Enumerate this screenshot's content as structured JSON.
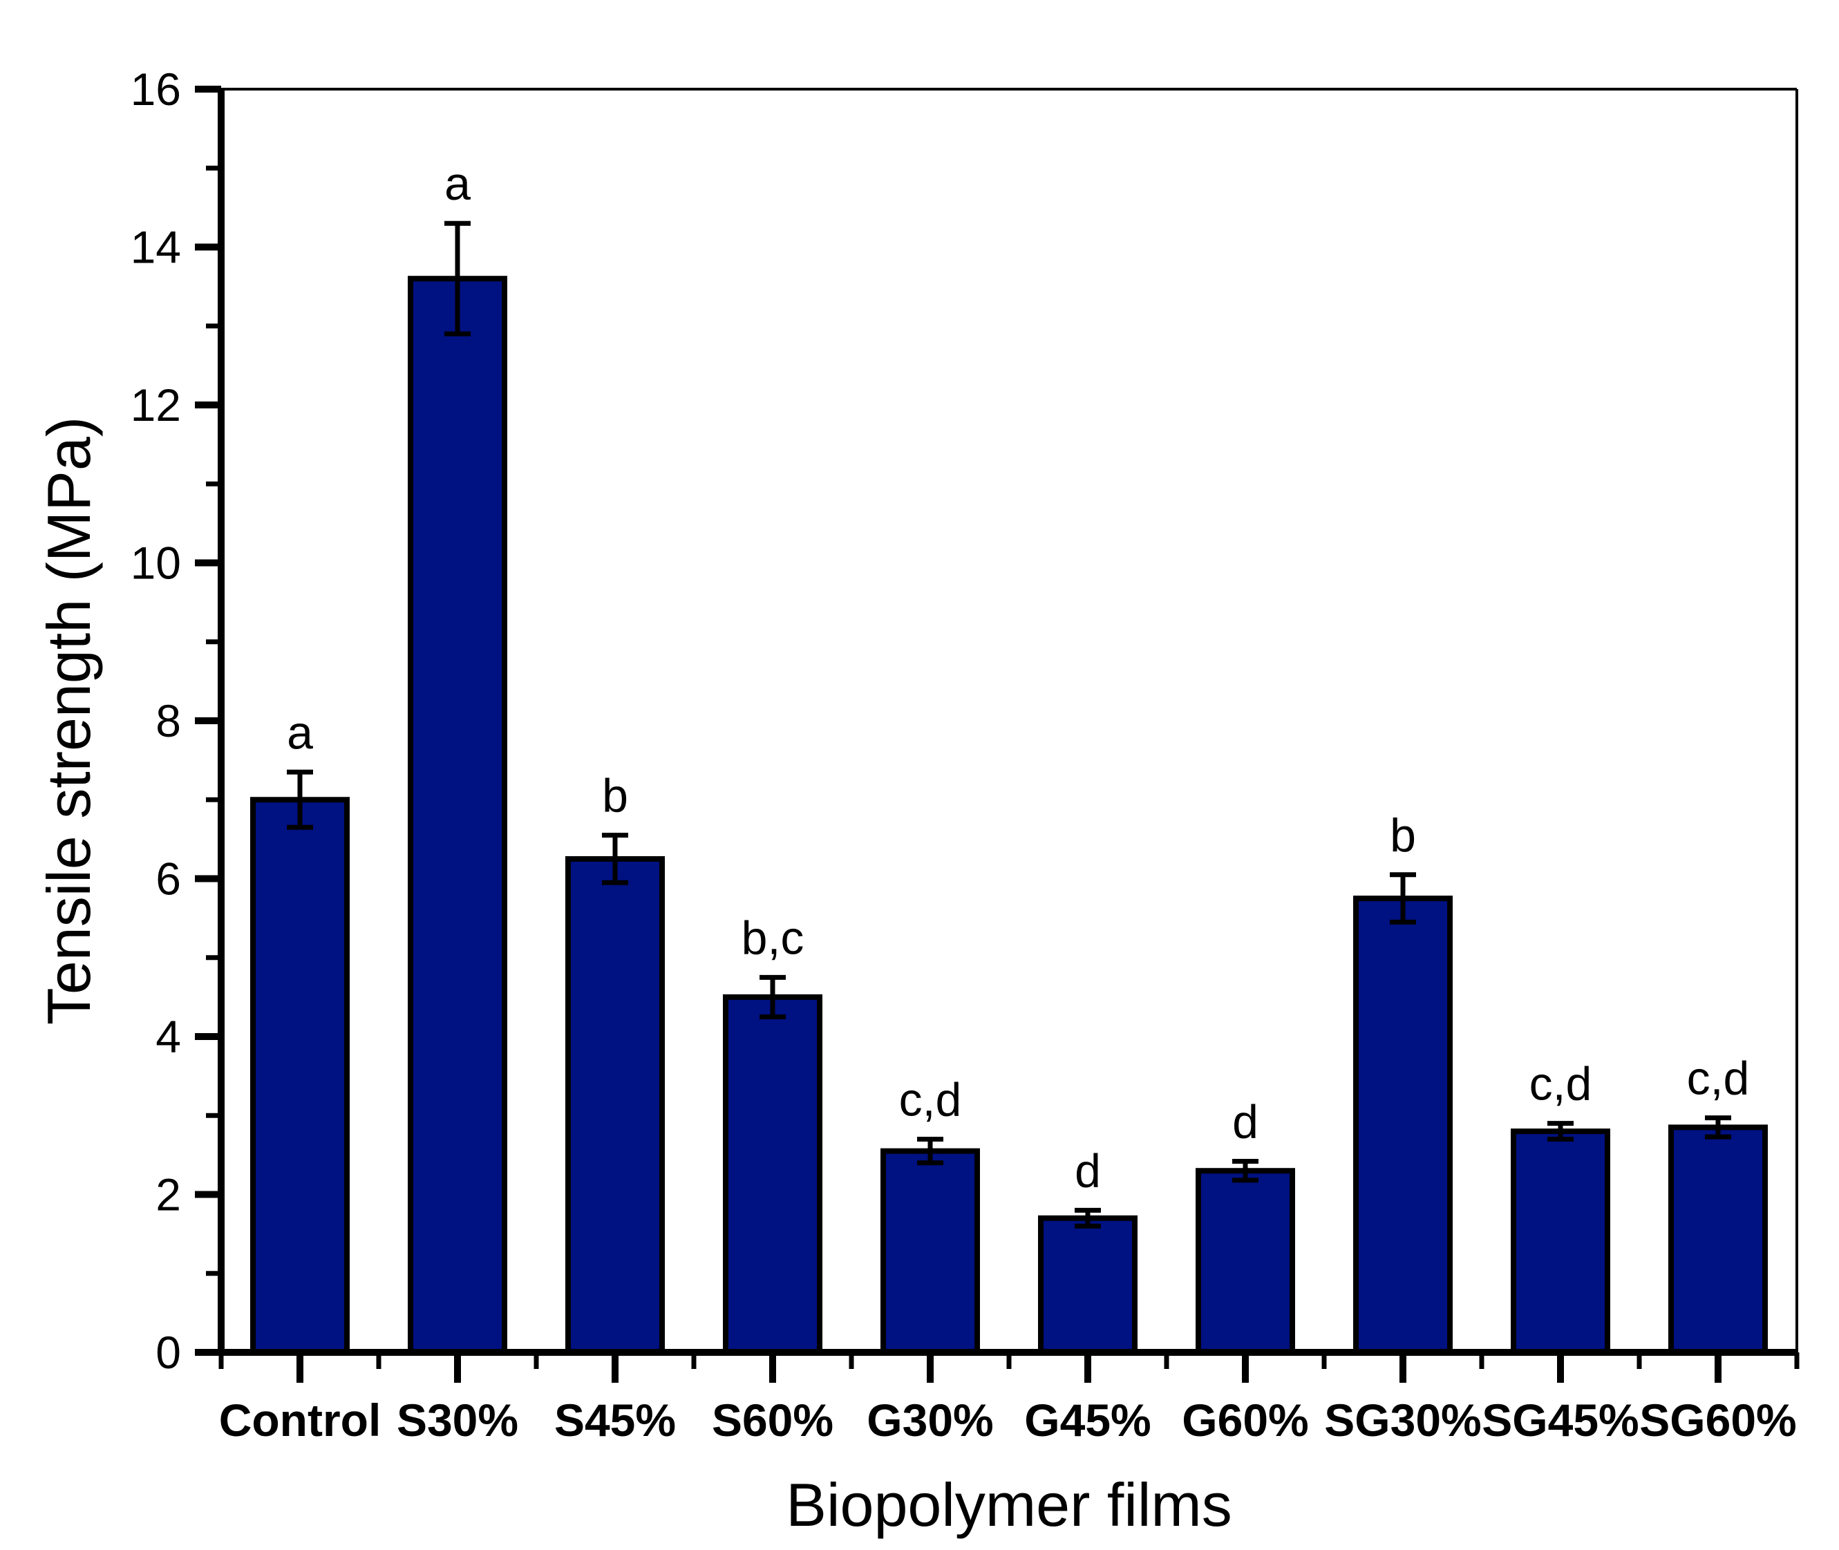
{
  "figure": {
    "background": "#ffffff"
  },
  "chart_data": {
    "type": "bar",
    "title": "",
    "xlabel": "Biopolymer films",
    "ylabel": "Tensile strength (MPa)",
    "categories": [
      "Control",
      "S30%",
      "S45%",
      "S60%",
      "G30%",
      "G45%",
      "G60%",
      "SG30%",
      "SG45%",
      "SG60%"
    ],
    "series": [
      {
        "name": "Tensile strength",
        "values": [
          7.0,
          13.6,
          6.25,
          4.5,
          2.55,
          1.7,
          2.3,
          5.75,
          2.8,
          2.85
        ],
        "errors": [
          0.35,
          0.7,
          0.3,
          0.25,
          0.15,
          0.1,
          0.12,
          0.3,
          0.1,
          0.12
        ]
      }
    ],
    "significance_letters": [
      "a",
      "a",
      "b",
      "b,c",
      "c,d",
      "d",
      "d",
      "b",
      "c,d",
      "c,d"
    ],
    "ylim": [
      0,
      16
    ],
    "y_major_tick_step": 2,
    "y_minor_tick_step": 1,
    "y_tick_labels": [
      "0",
      "2",
      "4",
      "6",
      "8",
      "10",
      "12",
      "14",
      "16"
    ],
    "grid": "off",
    "legend": "none",
    "bar_color": "#001182",
    "bar_edge_color": "#000000",
    "error_bar_color": "#000000",
    "axis_color": "#000000",
    "text_color": "#000000"
  }
}
